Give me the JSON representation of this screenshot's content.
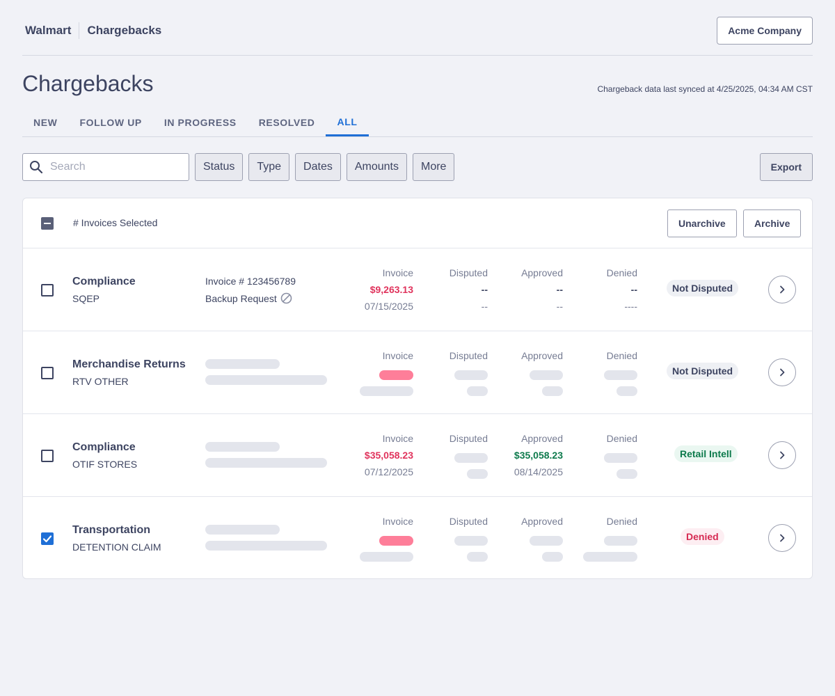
{
  "header": {
    "breadcrumb": [
      "Walmart",
      "Chargebacks"
    ],
    "company_button": "Acme Company"
  },
  "page": {
    "title": "Chargebacks",
    "sync_text": "Chargeback data last synced at 4/25/2025, 04:34 AM CST"
  },
  "tabs": [
    {
      "label": "NEW",
      "active": false
    },
    {
      "label": "FOLLOW UP",
      "active": false
    },
    {
      "label": "IN PROGRESS",
      "active": false
    },
    {
      "label": "RESOLVED",
      "active": false
    },
    {
      "label": "ALL",
      "active": true
    }
  ],
  "filters": {
    "search_placeholder": "Search",
    "search_icon": "search-icon",
    "buttons": [
      "Status",
      "Type",
      "Dates",
      "Amounts",
      "More"
    ],
    "export_label": "Export"
  },
  "table": {
    "selected_label": "# Invoices Selected",
    "unarchive_label": "Unarchive",
    "archive_label": "Archive",
    "column_labels": {
      "invoice": "Invoice",
      "disputed": "Disputed",
      "approved": "Approved",
      "denied": "Denied"
    },
    "rows": [
      {
        "checked": false,
        "title": "Compliance",
        "subtitle": "SQEP",
        "invoice_number": "Invoice # 123456789",
        "backup_request": "Backup Request",
        "invoice_amount": "$9,263.13",
        "invoice_date": "07/15/2025",
        "disputed_amount": "--",
        "disputed_date": "--",
        "approved_amount": "--",
        "approved_date": "--",
        "denied_amount": "--",
        "denied_date": "----",
        "status": "Not Disputed"
      },
      {
        "checked": false,
        "title": "Merchandise Returns",
        "subtitle": "RTV OTHER",
        "status": "Not Disputed"
      },
      {
        "checked": false,
        "title": "Compliance",
        "subtitle": "OTIF STORES",
        "invoice_amount": "$35,058.23",
        "invoice_date": "07/12/2025",
        "approved_amount": "$35,058.23",
        "approved_date": "08/14/2025",
        "status": "Retail Intell"
      },
      {
        "checked": true,
        "title": "Transportation",
        "subtitle": "DETENTION CLAIM",
        "status": "Denied"
      }
    ]
  },
  "colors": {
    "accent": "#1f6fd6",
    "danger": "#e0335c",
    "success": "#0d7a4c",
    "text": "#3d4461"
  }
}
